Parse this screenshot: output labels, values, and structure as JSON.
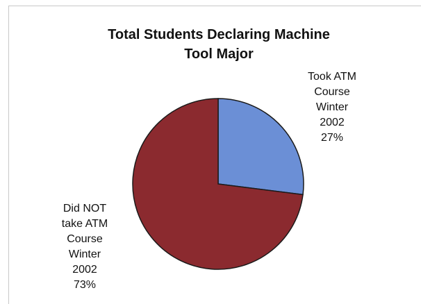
{
  "chart_data": {
    "type": "pie",
    "title_lines": [
      "Total Students Declaring Machine",
      "Tool Major"
    ],
    "slices": [
      {
        "label_lines": [
          "Took ATM",
          "Course",
          "Winter",
          "2002"
        ],
        "percent_label": "27%",
        "value": 27,
        "color": "#6b8fd6"
      },
      {
        "label_lines": [
          "Did NOT",
          "take ATM",
          "Course",
          "Winter",
          "2002"
        ],
        "percent_label": "73%",
        "value": 73,
        "color": "#8b2a2f"
      }
    ],
    "legend": "none"
  }
}
